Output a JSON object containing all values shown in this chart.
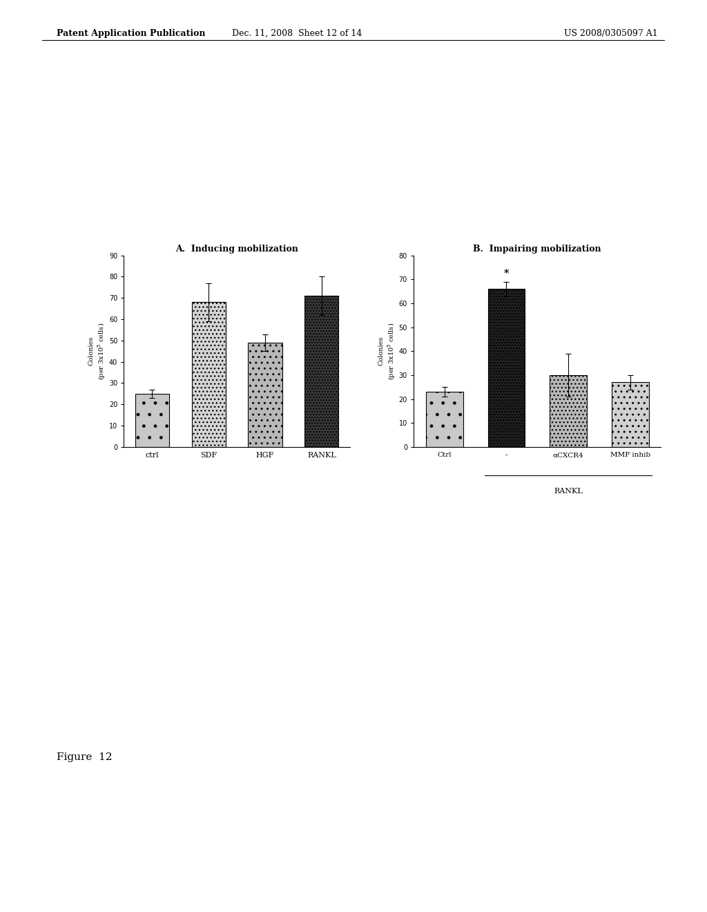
{
  "fig_width": 10.24,
  "fig_height": 13.2,
  "background_color": "#ffffff",
  "header_left": "Patent Application Publication",
  "header_mid": "Dec. 11, 2008  Sheet 12 of 14",
  "header_right": "US 2008/0305097 A1",
  "figure_label": "Figure  12",
  "panel_A": {
    "title": "A.  Inducing mobilization",
    "categories": [
      "ctrl",
      "SDF",
      "HGF",
      "RANKL"
    ],
    "values": [
      25,
      68,
      49,
      71
    ],
    "errors": [
      2,
      9,
      4,
      9
    ],
    "ylim": [
      0,
      90
    ],
    "yticks": [
      0,
      10,
      20,
      30,
      40,
      50,
      60,
      70,
      80,
      90
    ],
    "bar_colors": [
      "#c8c8c8",
      "#d4d4d4",
      "#b8b8b8",
      "#383838"
    ],
    "bar_edgecolor": "#000000"
  },
  "panel_B": {
    "title": "B.  Impairing mobilization",
    "categories": [
      "Ctrl",
      "-",
      "αCXCR4",
      "MMP inhib"
    ],
    "values": [
      23,
      66,
      30,
      27
    ],
    "errors": [
      2,
      3,
      9,
      3
    ],
    "ylim": [
      0,
      80
    ],
    "yticks": [
      0,
      10,
      20,
      30,
      40,
      50,
      60,
      70,
      80
    ],
    "bar_colors": [
      "#c8c8c8",
      "#202020",
      "#b8b8b8",
      "#d0d0d0"
    ],
    "bar_edgecolor": "#000000",
    "rankl_label": "RANKL",
    "star_bar": 1
  }
}
